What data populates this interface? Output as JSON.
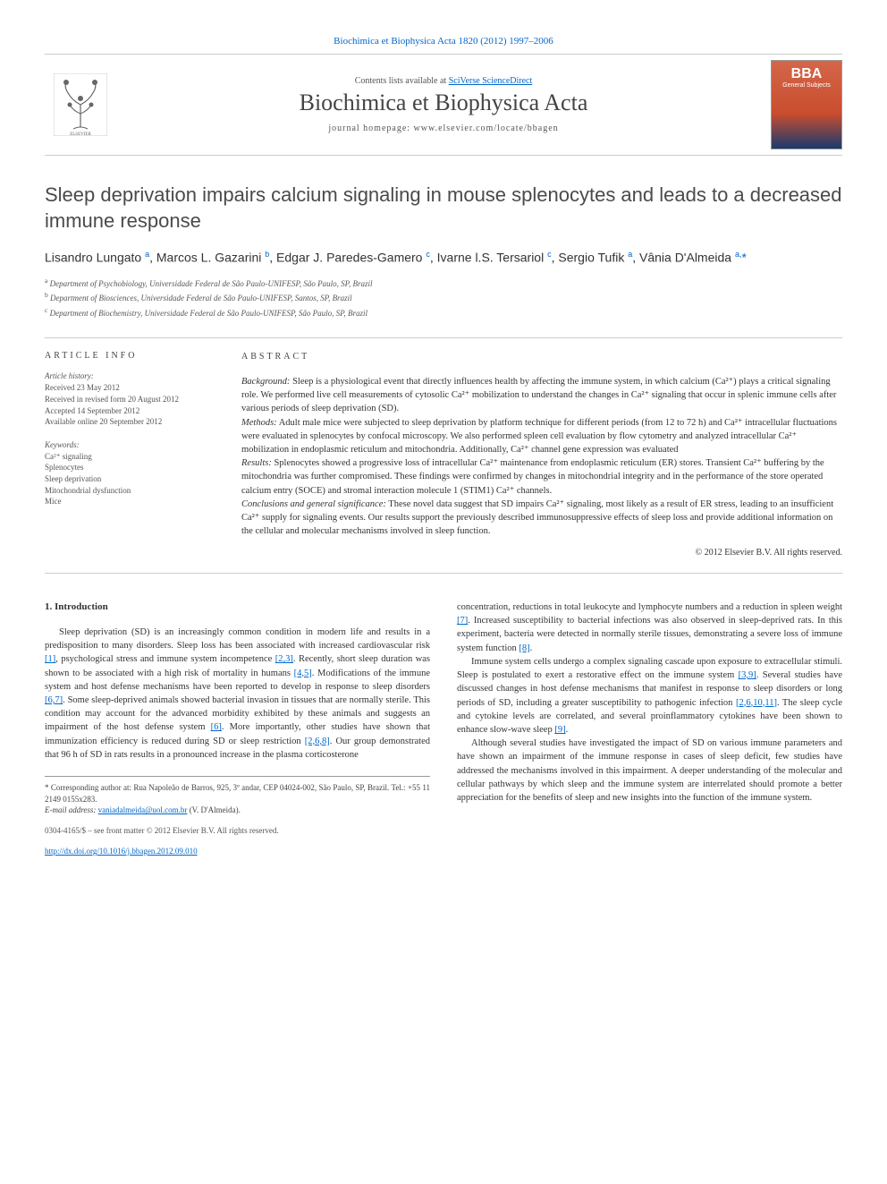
{
  "header": {
    "citation": "Biochimica et Biophysica Acta 1820 (2012) 1997–2006",
    "contents_prefix": "Contents lists available at ",
    "contents_link": "SciVerse ScienceDirect",
    "journal_name": "Biochimica et Biophysica Acta",
    "homepage_label": "journal homepage: www.elsevier.com/locate/bbagen",
    "cover_abbrev": "BBA",
    "cover_subtitle": "General Subjects"
  },
  "article": {
    "title": "Sleep deprivation impairs calcium signaling in mouse splenocytes and leads to a decreased immune response",
    "authors_html": "Lisandro Lungato <sup>a</sup>, Marcos L. Gazarini <sup>b</sup>, Edgar J. Paredes-Gamero <sup>c</sup>, Ivarne l.S. Tersariol <sup>c</sup>, Sergio Tufik <sup>a</sup>, Vânia D'Almeida <sup>a,</sup><span class='corr-star'>*</span>",
    "affiliations": [
      "a Department of Psychobiology, Universidade Federal de São Paulo-UNIFESP, São Paulo, SP, Brazil",
      "b Department of Biosciences, Universidade Federal de São Paulo-UNIFESP, Santos, SP, Brazil",
      "c Department of Biochemistry, Universidade Federal de São Paulo-UNIFESP, São Paulo, SP, Brazil"
    ]
  },
  "article_info": {
    "heading": "ARTICLE INFO",
    "history_heading": "Article history:",
    "history": [
      "Received 23 May 2012",
      "Received in revised form 20 August 2012",
      "Accepted 14 September 2012",
      "Available online 20 September 2012"
    ],
    "keywords_heading": "Keywords:",
    "keywords": [
      "Ca²⁺ signaling",
      "Splenocytes",
      "Sleep deprivation",
      "Mitochondrial dysfunction",
      "Mice"
    ]
  },
  "abstract": {
    "heading": "ABSTRACT",
    "sections": [
      {
        "label": "Background:",
        "text": " Sleep is a physiological event that directly influences health by affecting the immune system, in which calcium (Ca²⁺) plays a critical signaling role. We performed live cell measurements of cytosolic Ca²⁺ mobilization to understand the changes in Ca²⁺ signaling that occur in splenic immune cells after various periods of sleep deprivation (SD)."
      },
      {
        "label": "Methods:",
        "text": " Adult male mice were subjected to sleep deprivation by platform technique for different periods (from 12 to 72 h) and Ca²⁺ intracellular fluctuations were evaluated in splenocytes by confocal microscopy. We also performed spleen cell evaluation by flow cytometry and analyzed intracellular Ca²⁺ mobilization in endoplasmic reticulum and mitochondria. Additionally, Ca²⁺ channel gene expression was evaluated"
      },
      {
        "label": "Results:",
        "text": " Splenocytes showed a progressive loss of intracellular Ca²⁺ maintenance from endoplasmic reticulum (ER) stores. Transient Ca²⁺ buffering by the mitochondria was further compromised. These findings were confirmed by changes in mitochondrial integrity and in the performance of the store operated calcium entry (SOCE) and stromal interaction molecule 1 (STIM1) Ca²⁺ channels."
      },
      {
        "label": "Conclusions and general significance:",
        "text": " These novel data suggest that SD impairs Ca²⁺ signaling, most likely as a result of ER stress, leading to an insufficient Ca²⁺ supply for signaling events. Our results support the previously described immunosuppressive effects of sleep loss and provide additional information on the cellular and molecular mechanisms involved in sleep function."
      }
    ],
    "copyright": "© 2012 Elsevier B.V. All rights reserved."
  },
  "body": {
    "intro_heading": "1. Introduction",
    "left_paragraphs": [
      "Sleep deprivation (SD) is an increasingly common condition in modern life and results in a predisposition to many disorders. Sleep loss has been associated with increased cardiovascular risk <a class='ref-link' href='#'>[1]</a>, psychological stress and immune system incompetence <a class='ref-link' href='#'>[2,3]</a>. Recently, short sleep duration was shown to be associated with a high risk of mortality in humans <a class='ref-link' href='#'>[4,5]</a>. Modifications of the immune system and host defense mechanisms have been reported to develop in response to sleep disorders <a class='ref-link' href='#'>[6,7]</a>. Some sleep-deprived animals showed bacterial invasion in tissues that are normally sterile. This condition may account for the advanced morbidity exhibited by these animals and suggests an impairment of the host defense system <a class='ref-link' href='#'>[6]</a>. More importantly, other studies have shown that immunization efficiency is reduced during SD or sleep restriction <a class='ref-link' href='#'>[2,6,8]</a>. Our group demonstrated that 96 h of SD in rats results in a pronounced increase in the plasma corticosterone"
    ],
    "right_paragraphs": [
      "concentration, reductions in total leukocyte and lymphocyte numbers and a reduction in spleen weight <a class='ref-link' href='#'>[7]</a>. Increased susceptibility to bacterial infections was also observed in sleep-deprived rats. In this experiment, bacteria were detected in normally sterile tissues, demonstrating a severe loss of immune system function <a class='ref-link' href='#'>[8]</a>.",
      "Immune system cells undergo a complex signaling cascade upon exposure to extracellular stimuli. Sleep is postulated to exert a restorative effect on the immune system <a class='ref-link' href='#'>[3,9]</a>. Several studies have discussed changes in host defense mechanisms that manifest in response to sleep disorders or long periods of SD, including a greater susceptibility to pathogenic infection <a class='ref-link' href='#'>[2,6,10,11]</a>. The sleep cycle and cytokine levels are correlated, and several proinflammatory cytokines have been shown to enhance slow-wave sleep <a class='ref-link' href='#'>[9]</a>.",
      "Although several studies have investigated the impact of SD on various immune parameters and have shown an impairment of the immune response in cases of sleep deficit, few studies have addressed the mechanisms involved in this impairment. A deeper understanding of the molecular and cellular pathways by which sleep and the immune system are interrelated should promote a better appreciation for the benefits of sleep and new insights into the function of the immune system."
    ]
  },
  "footnote": {
    "corresponding": "* Corresponding author at: Rua Napoleão de Barros, 925, 3º andar, CEP 04024-002, São Paulo, SP, Brazil. Tel.: +55 11 2149 0155x283.",
    "email_label": "E-mail address: ",
    "email": "vaniadalmeida@uol.com.br",
    "email_suffix": " (V. D'Almeida)."
  },
  "footer": {
    "issn_line": "0304-4165/$ – see front matter © 2012 Elsevier B.V. All rights reserved.",
    "doi": "http://dx.doi.org/10.1016/j.bbagen.2012.09.010"
  },
  "colors": {
    "link": "#0066cc",
    "text": "#333333",
    "muted": "#555555",
    "rule": "#cccccc",
    "cover_top": "#d4664a",
    "cover_bottom": "#1a3a6e"
  }
}
